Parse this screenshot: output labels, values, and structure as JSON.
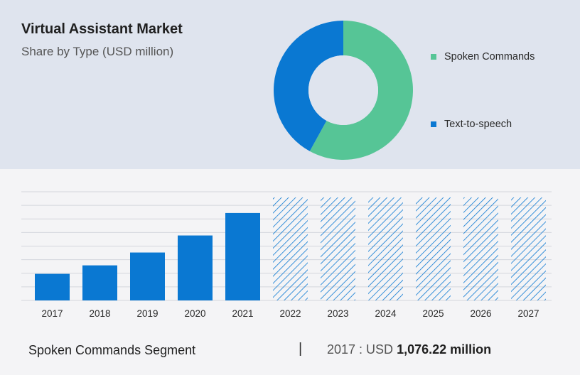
{
  "header": {
    "title": "Virtual Assistant Market",
    "subtitle": "Share by Type (USD million)"
  },
  "colors": {
    "spoken_commands": "#56c596",
    "text_to_speech": "#0a78d2",
    "bar": "#0a78d2",
    "forecast_hatch": "#0a78d2",
    "top_bg": "#dfe4ee",
    "bottom_bg": "#f4f4f6",
    "grid": "#d4d6dc"
  },
  "footer": {
    "segment_label": "Spoken Commands Segment",
    "divider": "|",
    "year_label": "2017 : USD",
    "value_label": "1,076.22 million"
  },
  "chart_data": [
    {
      "type": "pie",
      "variant": "donut",
      "labels": [
        "Spoken Commands",
        "Text-to-speech"
      ],
      "values": [
        58,
        42
      ],
      "legend_position": "right"
    },
    {
      "type": "bar",
      "categories": [
        "2017",
        "2018",
        "2019",
        "2020",
        "2021",
        "2022",
        "2023",
        "2024",
        "2025",
        "2026",
        "2027"
      ],
      "values": [
        1076.22,
        1420,
        1940,
        2630,
        3540,
        null,
        null,
        null,
        null,
        null,
        null
      ],
      "forecast_categories": [
        "2022",
        "2023",
        "2024",
        "2025",
        "2026",
        "2027"
      ],
      "ylim": [
        0,
        4400
      ],
      "grid": true,
      "gridlines": 9
    }
  ]
}
